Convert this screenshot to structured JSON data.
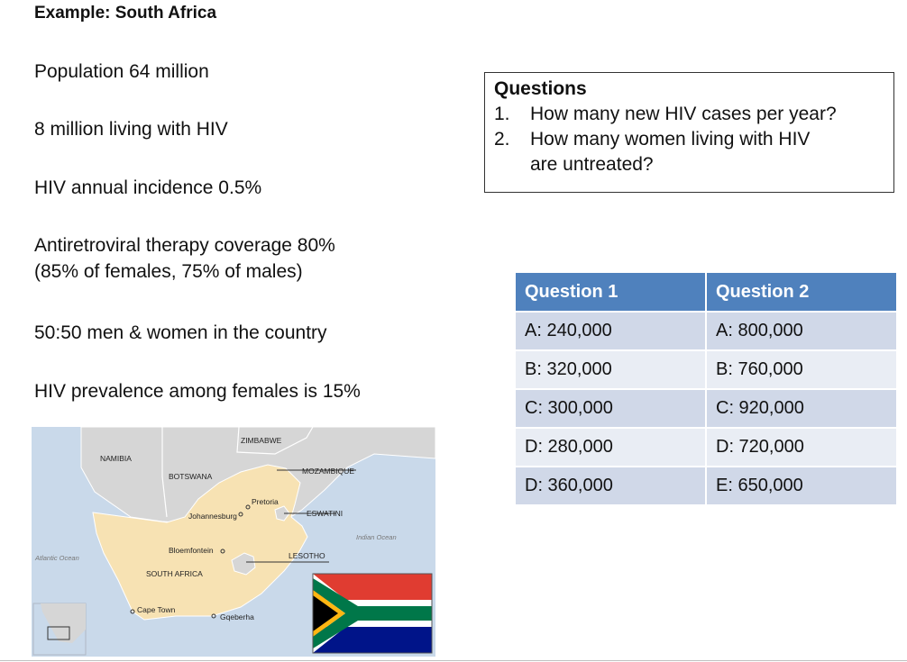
{
  "title": "Example: South Africa",
  "facts": [
    "Population 64 million",
    "8 million living with HIV",
    "HIV annual incidence 0.5%",
    "Antiretroviral therapy coverage 80%",
    "(85% of females, 75% of males)",
    "50:50 men & women in the country",
    "HIV prevalence among females is 15%"
  ],
  "questions": {
    "heading": "Questions",
    "items": [
      {
        "num": "1.",
        "text": "How many new HIV cases per year?"
      },
      {
        "num": "2.",
        "text": "How many women living with HIV"
      },
      {
        "num": "",
        "text": "are untreated?"
      }
    ]
  },
  "answers": {
    "headers": [
      "Question 1",
      "Question 2"
    ],
    "rows": [
      [
        "A: 240,000",
        "A: 800,000"
      ],
      [
        "B: 320,000",
        "B: 760,000"
      ],
      [
        "C: 300,000",
        "C: 920,000"
      ],
      [
        "D: 280,000",
        "D: 720,000"
      ],
      [
        "D: 360,000",
        "E: 650,000"
      ]
    ]
  },
  "map": {
    "labels": {
      "zimbabwe": "ZIMBABWE",
      "namibia": "NAMIBIA",
      "botswana": "BOTSWANA",
      "mozambique": "MOZAMBIQUE",
      "pretoria": "Pretoria",
      "johannesburg": "Johannesburg",
      "eswatini": "ESWATINI",
      "indian_ocean": "Indian Ocean",
      "bloemfontein": "Bloemfontein",
      "lesotho": "LESOTHO",
      "atlantic_ocean": "Atlantic Ocean",
      "south_africa": "SOUTH AFRICA",
      "cape_town": "Cape Town",
      "gqeberha": "Gqeberha"
    },
    "colors": {
      "sea": "#c9d9ea",
      "land": "#d6d6d6",
      "south_africa": "#f7e2b3",
      "border": "#ffffff"
    }
  },
  "flag": {
    "colors": {
      "red": "#e03c31",
      "blue": "#001489",
      "green": "#007749",
      "gold": "#ffb612",
      "black": "#000000",
      "white": "#ffffff"
    }
  }
}
